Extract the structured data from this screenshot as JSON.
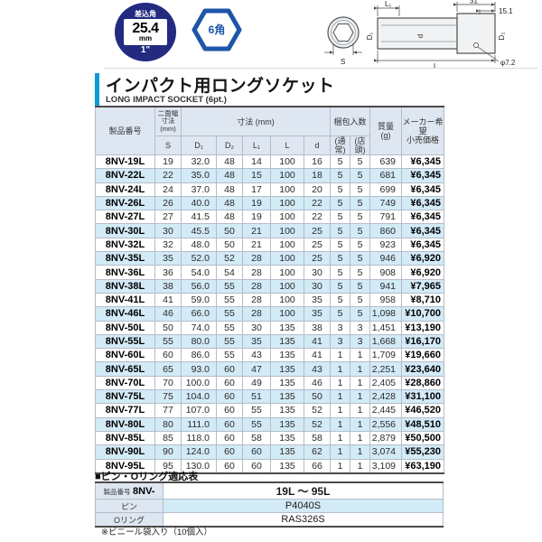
{
  "badge": {
    "top_label": "差込角",
    "size": "25.4",
    "unit": "mm",
    "inch": "1\""
  },
  "hex_badge": {
    "label": "6角"
  },
  "drawing": {
    "s": "S",
    "d1": "D₁",
    "d2": "D₂",
    "d": "d",
    "l1": "L₁",
    "l": "L",
    "dim_31": "31",
    "dim_15_1": "15.1",
    "hole": "φ7.2"
  },
  "title": {
    "ja": "インパクト用ロングソケット",
    "en": "LONG IMPACT SOCKET (6pt.)"
  },
  "table": {
    "header": {
      "product": "製品番号",
      "waf": "二面幅\n寸法\n(mm)",
      "dims": "寸法 (mm)",
      "pack": "梱包入数",
      "weight": "質量\n(g)",
      "price": "メーカー希望\n小売価格",
      "sub": {
        "s": "S",
        "d1": "D₁",
        "d2": "D₂",
        "l1": "L₁",
        "l": "L",
        "d": "d",
        "pack_normal": "(通常)",
        "pack_store": "(店頭)"
      }
    },
    "rows": [
      [
        "8NV-19L",
        "19",
        "32.0",
        "48",
        "14",
        "100",
        "16",
        "5",
        "5",
        "639",
        "¥6,345"
      ],
      [
        "8NV-22L",
        "22",
        "35.0",
        "48",
        "15",
        "100",
        "18",
        "5",
        "5",
        "681",
        "¥6,345"
      ],
      [
        "8NV-24L",
        "24",
        "37.0",
        "48",
        "17",
        "100",
        "20",
        "5",
        "5",
        "699",
        "¥6,345"
      ],
      [
        "8NV-26L",
        "26",
        "40.0",
        "48",
        "19",
        "100",
        "22",
        "5",
        "5",
        "749",
        "¥6,345"
      ],
      [
        "8NV-27L",
        "27",
        "41.5",
        "48",
        "19",
        "100",
        "22",
        "5",
        "5",
        "791",
        "¥6,345"
      ],
      [
        "8NV-30L",
        "30",
        "45.5",
        "50",
        "21",
        "100",
        "25",
        "5",
        "5",
        "860",
        "¥6,345"
      ],
      [
        "8NV-32L",
        "32",
        "48.0",
        "50",
        "21",
        "100",
        "25",
        "5",
        "5",
        "923",
        "¥6,345"
      ],
      [
        "8NV-35L",
        "35",
        "52.0",
        "52",
        "28",
        "100",
        "25",
        "5",
        "5",
        "946",
        "¥6,920"
      ],
      [
        "8NV-36L",
        "36",
        "54.0",
        "54",
        "28",
        "100",
        "30",
        "5",
        "5",
        "908",
        "¥6,920"
      ],
      [
        "8NV-38L",
        "38",
        "56.0",
        "55",
        "28",
        "100",
        "30",
        "5",
        "5",
        "941",
        "¥7,965"
      ],
      [
        "8NV-41L",
        "41",
        "59.0",
        "55",
        "28",
        "100",
        "35",
        "5",
        "5",
        "958",
        "¥8,710"
      ],
      [
        "8NV-46L",
        "46",
        "66.0",
        "55",
        "28",
        "100",
        "35",
        "5",
        "5",
        "1,098",
        "¥10,700"
      ],
      [
        "8NV-50L",
        "50",
        "74.0",
        "55",
        "30",
        "135",
        "38",
        "3",
        "3",
        "1,451",
        "¥13,190"
      ],
      [
        "8NV-55L",
        "55",
        "80.0",
        "55",
        "35",
        "135",
        "41",
        "3",
        "3",
        "1,668",
        "¥16,170"
      ],
      [
        "8NV-60L",
        "60",
        "86.0",
        "55",
        "43",
        "135",
        "41",
        "1",
        "1",
        "1,709",
        "¥19,660"
      ],
      [
        "8NV-65L",
        "65",
        "93.0",
        "60",
        "47",
        "135",
        "43",
        "1",
        "1",
        "2,251",
        "¥23,640"
      ],
      [
        "8NV-70L",
        "70",
        "100.0",
        "60",
        "49",
        "135",
        "46",
        "1",
        "1",
        "2,405",
        "¥28,860"
      ],
      [
        "8NV-75L",
        "75",
        "104.0",
        "60",
        "51",
        "135",
        "50",
        "1",
        "1",
        "2,428",
        "¥31,100"
      ],
      [
        "8NV-77L",
        "77",
        "107.0",
        "60",
        "55",
        "135",
        "52",
        "1",
        "1",
        "2,445",
        "¥46,520"
      ],
      [
        "8NV-80L",
        "80",
        "111.0",
        "60",
        "55",
        "135",
        "52",
        "1",
        "1",
        "2,556",
        "¥48,510"
      ],
      [
        "8NV-85L",
        "85",
        "118.0",
        "60",
        "58",
        "135",
        "58",
        "1",
        "1",
        "2,879",
        "¥50,500"
      ],
      [
        "8NV-90L",
        "90",
        "124.0",
        "60",
        "60",
        "135",
        "62",
        "1",
        "1",
        "3,074",
        "¥55,230"
      ],
      [
        "8NV-95L",
        "95",
        "130.0",
        "60",
        "60",
        "135",
        "66",
        "1",
        "1",
        "3,109",
        "¥63,190"
      ]
    ]
  },
  "compat": {
    "title": "■ピン・Oリング適応表",
    "rows": [
      {
        "label_small": "製品番号",
        "label_bold": "8NV-",
        "value": "19L ～ 95L"
      },
      {
        "label": "ピン",
        "value": "P4040S"
      },
      {
        "label": "Oリング",
        "value": "RAS326S"
      }
    ]
  },
  "footnote": "※ビニール袋入り（10個入）",
  "colors": {
    "accent_blue": "#0d9bd7",
    "badge_navy": "#232a80",
    "hex_blue": "#1d55a8",
    "row_alt": "#d3eaf7",
    "header_bg": "#dee6f1"
  }
}
